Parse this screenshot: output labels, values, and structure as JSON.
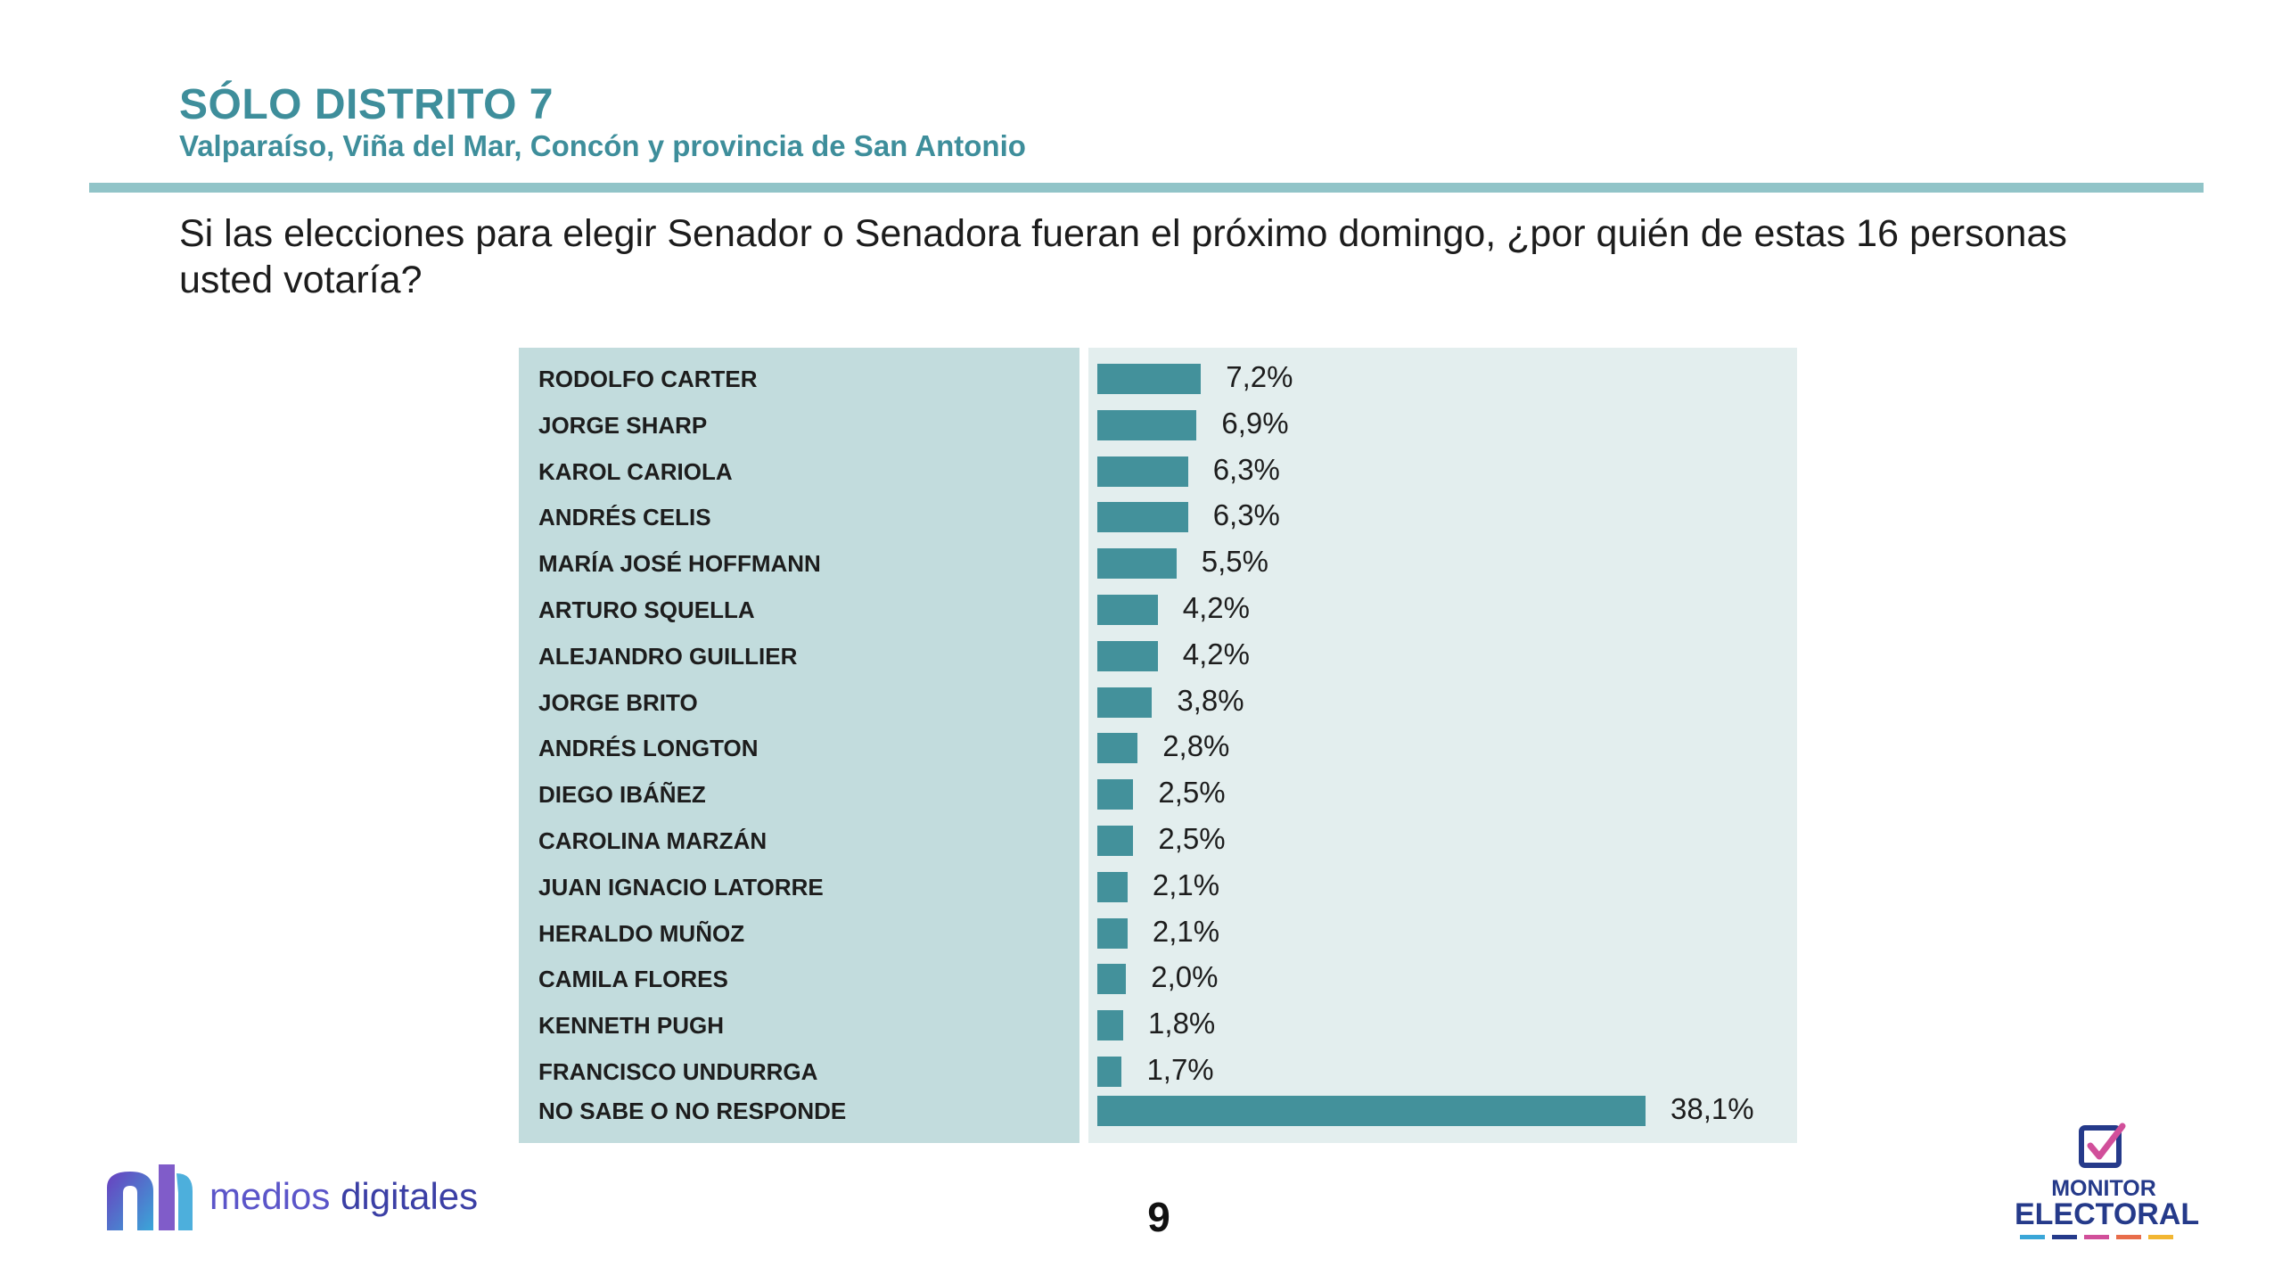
{
  "header": {
    "title": "SÓLO DISTRITO 7",
    "subtitle": "Valparaíso, Viña del Mar, Concón y provincia de San Antonio",
    "question": "Si las elecciones para elegir Senador o Senadora fueran el próximo domingo, ¿por quién de estas 16 personas usted votaría?"
  },
  "colors": {
    "accent": "#3e8e9b",
    "bar": "#43919b",
    "label_panel": "#c2dcdd",
    "bar_panel": "#e3eeee",
    "rule": "#91c4c8"
  },
  "chart_data": {
    "type": "bar",
    "orientation": "horizontal",
    "categories": [
      "RODOLFO CARTER",
      "JORGE SHARP",
      "KAROL CARIOLA",
      "ANDRÉS CELIS",
      "MARÍA JOSÉ HOFFMANN",
      "ARTURO SQUELLA",
      "ALEJANDRO GUILLIER",
      "JORGE BRITO",
      "ANDRÉS LONGTON",
      "DIEGO IBÁÑEZ",
      "CAROLINA MARZÁN",
      "JUAN IGNACIO LATORRE",
      "HERALDO MUÑOZ",
      "CAMILA FLORES",
      "KENNETH PUGH",
      "FRANCISCO UNDURRGA",
      "NO SABE O NO RESPONDE"
    ],
    "values": [
      7.2,
      6.9,
      6.3,
      6.3,
      5.5,
      4.2,
      4.2,
      3.8,
      2.8,
      2.5,
      2.5,
      2.1,
      2.1,
      2.0,
      1.8,
      1.7,
      38.1
    ],
    "value_labels": [
      "7,2%",
      "6,9%",
      "6,3%",
      "6,3%",
      "5,5%",
      "4,2%",
      "4,2%",
      "3,8%",
      "2,8%",
      "2,5%",
      "2,5%",
      "2,1%",
      "2,1%",
      "2,0%",
      "1,8%",
      "1,7%",
      "38,1%"
    ],
    "unit": "%",
    "xlim": [
      0,
      38.1
    ],
    "grid": false,
    "legend": "none"
  },
  "footer": {
    "brand_left_1": "medios ",
    "brand_left_2": "digitales",
    "page_number": "9",
    "brand_right_1": "MONITOR",
    "brand_right_2": "ELECTORAL",
    "logo_left_icon": "medios-digitales-logo-icon",
    "logo_right_icon": "ballot-box-check-icon"
  }
}
